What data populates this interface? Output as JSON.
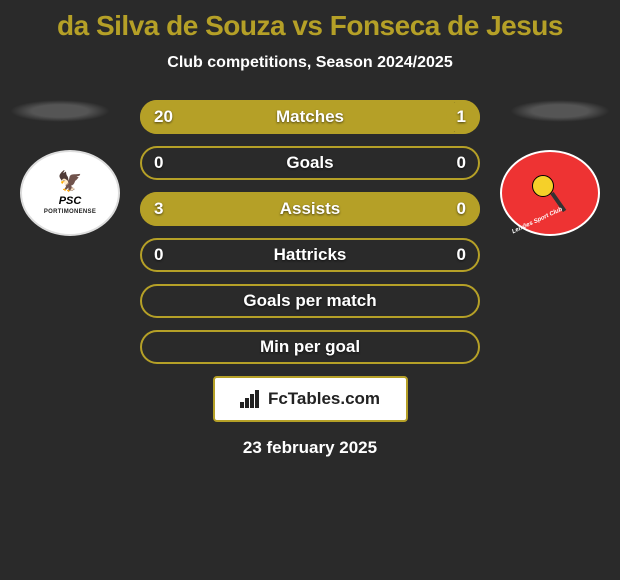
{
  "title": {
    "text": "da Silva de Souza vs Fonseca de Jesus",
    "color": "#b5a027",
    "fontsize": 28
  },
  "subtitle": {
    "text": "Club competitions, Season 2024/2025",
    "color": "#ffffff",
    "fontsize": 16
  },
  "theme": {
    "background": "#2a2a2a",
    "accent": "#b5a027",
    "text": "#ffffff",
    "bar_label_fontsize": 17,
    "bar_val_fontsize": 17
  },
  "badges": {
    "left": {
      "name": "portimonense-logo",
      "label_top": "PORTIMONENSE",
      "label_mid": "PSC"
    },
    "right": {
      "name": "leixoes-logo",
      "label": "Leixões Sport Club"
    }
  },
  "stats": [
    {
      "label": "Matches",
      "left_val": "20",
      "right_val": "1",
      "left_pct": 95,
      "right_pct": 5
    },
    {
      "label": "Goals",
      "left_val": "0",
      "right_val": "0",
      "left_pct": 0,
      "right_pct": 0
    },
    {
      "label": "Assists",
      "left_val": "3",
      "right_val": "0",
      "left_pct": 100,
      "right_pct": 0
    },
    {
      "label": "Hattricks",
      "left_val": "0",
      "right_val": "0",
      "left_pct": 0,
      "right_pct": 0
    },
    {
      "label": "Goals per match",
      "left_val": "",
      "right_val": "",
      "left_pct": 0,
      "right_pct": 0
    },
    {
      "label": "Min per goal",
      "left_val": "",
      "right_val": "",
      "left_pct": 0,
      "right_pct": 0
    }
  ],
  "branding": {
    "text": "FcTables.com",
    "fontsize": 17
  },
  "date": {
    "text": "23 february 2025",
    "fontsize": 17
  }
}
